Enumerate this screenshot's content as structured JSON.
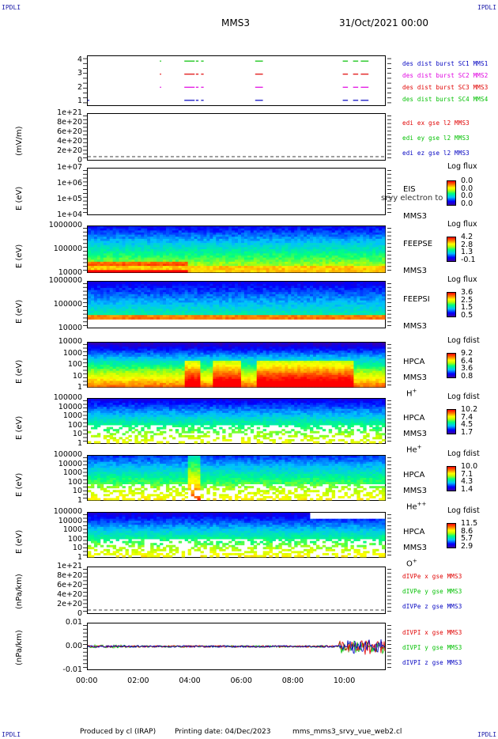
{
  "header": {
    "corner_left_top": "IPDLI",
    "corner_right_top": "IPDLI",
    "corner_left_bottom": "IPDLI",
    "corner_right_bottom": "IPDLI",
    "spacecraft": "MMS3",
    "date": "31/Oct/2021 00:00"
  },
  "footer": {
    "producer": "Produced by cl (IRAP)",
    "printing": "Printing date: 04/Dec/2023",
    "script": "mms_mms3_srvy_vue_web2.cl"
  },
  "x_ticks": [
    "00:00",
    "02:00",
    "04:00",
    "06:00",
    "08:00",
    "10:00"
  ],
  "colors": {
    "c1": "#0000c0",
    "c2": "#e000e0",
    "c3": "#e00000",
    "c4": "#00c000",
    "red": "#e00000",
    "green": "#00c000",
    "blue": "#0000c0"
  },
  "chart_data": [
    {
      "type": "scatter",
      "title": "",
      "ylabel": "",
      "y_ticks": [
        "4",
        "3",
        "2",
        "1"
      ],
      "series": [
        {
          "name": "des dist burst SC1 MMS1",
          "color": "c1",
          "y": 1,
          "intervals": [
            [
              0.0,
              0.06
            ],
            [
              3.75,
              4.15
            ],
            [
              4.2,
              4.3
            ],
            [
              4.4,
              4.5
            ],
            [
              6.5,
              6.8
            ],
            [
              9.9,
              10.1
            ],
            [
              10.3,
              10.5
            ],
            [
              10.6,
              10.9
            ]
          ]
        },
        {
          "name": "des dist burst SC2 MMS2",
          "color": "c2",
          "y": 2,
          "intervals": [
            [
              2.8,
              2.85
            ],
            [
              3.75,
              4.15
            ],
            [
              4.2,
              4.3
            ],
            [
              4.4,
              4.5
            ],
            [
              6.5,
              6.8
            ],
            [
              9.9,
              10.1
            ],
            [
              10.3,
              10.5
            ],
            [
              10.6,
              10.9
            ]
          ]
        },
        {
          "name": "des dist burst SC3 MMS3",
          "color": "c3",
          "y": 3,
          "intervals": [
            [
              2.8,
              2.85
            ],
            [
              3.75,
              4.15
            ],
            [
              4.2,
              4.3
            ],
            [
              4.4,
              4.5
            ],
            [
              6.5,
              6.8
            ],
            [
              9.9,
              10.1
            ],
            [
              10.3,
              10.5
            ],
            [
              10.6,
              10.9
            ]
          ]
        },
        {
          "name": "des dist burst SC4 MMS4",
          "color": "c4",
          "y": 4,
          "intervals": [
            [
              2.8,
              2.85
            ],
            [
              3.75,
              4.15
            ],
            [
              4.2,
              4.3
            ],
            [
              4.4,
              4.5
            ],
            [
              6.5,
              6.8
            ],
            [
              9.9,
              10.1
            ],
            [
              10.3,
              10.5
            ],
            [
              10.6,
              10.9
            ]
          ]
        }
      ]
    },
    {
      "type": "line",
      "ylabel": "(mV/m)",
      "y_ticks": [
        "1e+21",
        "8e+20",
        "6e+20",
        "4e+20",
        "2e+20",
        "0"
      ],
      "series": [
        {
          "name": "edi ex gse l2 MMS3",
          "color": "red"
        },
        {
          "name": "edi ey gse l2 MMS3",
          "color": "green"
        },
        {
          "name": "edi ez gse l2 MMS3",
          "color": "blue"
        }
      ]
    },
    {
      "type": "heatmap",
      "ylabel": "E (eV)",
      "y_ticks": [
        "1e+07",
        "1e+06",
        "1e+05",
        "1e+04"
      ],
      "instrument": "EIS",
      "spacecraft": "MMS3",
      "overlay_text": "srvy electron to",
      "colorbar_title": "Log flux",
      "colorbar_values": [
        "0.0",
        "0.0",
        "0.0",
        "0.0"
      ]
    },
    {
      "type": "heatmap",
      "ylabel": "E (eV)",
      "y_ticks": [
        "1000000",
        "100000",
        "10000"
      ],
      "instrument": "FEEPSE",
      "spacecraft": "MMS3",
      "colorbar_title": "Log flux",
      "colorbar_values": [
        "4.2",
        "2.8",
        "1.3",
        "-0.1"
      ]
    },
    {
      "type": "heatmap",
      "ylabel": "E (eV)",
      "y_ticks": [
        "1000000",
        "100000",
        "10000"
      ],
      "instrument": "FEEPSI",
      "spacecraft": "MMS3",
      "colorbar_title": "Log flux",
      "colorbar_values": [
        "3.6",
        "2.5",
        "1.5",
        "0.5"
      ]
    },
    {
      "type": "heatmap",
      "ylabel": "E (eV)",
      "y_ticks": [
        "10000",
        "1000",
        "100",
        "10",
        "1"
      ],
      "instrument": "HPCA",
      "spacecraft": "MMS3",
      "species": "H",
      "species_sup": "+",
      "colorbar_title": "Log fdist",
      "colorbar_values": [
        "9.2",
        "6.4",
        "3.6",
        "0.8"
      ]
    },
    {
      "type": "heatmap",
      "ylabel": "E (eV)",
      "y_ticks": [
        "100000",
        "10000",
        "1000",
        "100",
        "10",
        "1"
      ],
      "instrument": "HPCA",
      "spacecraft": "MMS3",
      "species": "He",
      "species_sup": "+",
      "colorbar_title": "Log fdist",
      "colorbar_values": [
        "10.2",
        "7.4",
        "4.5",
        "1.7"
      ]
    },
    {
      "type": "heatmap",
      "ylabel": "E (eV)",
      "y_ticks": [
        "100000",
        "10000",
        "1000",
        "100",
        "10",
        "1"
      ],
      "instrument": "HPCA",
      "spacecraft": "MMS3",
      "species": "He",
      "species_sup": "++",
      "colorbar_title": "Log fdist",
      "colorbar_values": [
        "10.0",
        "7.1",
        "4.3",
        "1.4"
      ]
    },
    {
      "type": "heatmap",
      "ylabel": "E (eV)",
      "y_ticks": [
        "100000",
        "10000",
        "1000",
        "100",
        "10",
        "1"
      ],
      "instrument": "HPCA",
      "spacecraft": "MMS3",
      "species": "O",
      "species_sup": "+",
      "colorbar_title": "Log fdist",
      "colorbar_values": [
        "11.5",
        "8.6",
        "5.7",
        "2.9"
      ]
    },
    {
      "type": "line",
      "ylabel": "(nPa/km)",
      "y_ticks": [
        "1e+21",
        "8e+20",
        "6e+20",
        "4e+20",
        "2e+20",
        "0"
      ],
      "series": [
        {
          "name": "dIVPe x gse MMS3",
          "color": "red"
        },
        {
          "name": "dIVPe y gse MMS3",
          "color": "green"
        },
        {
          "name": "dIVPe z gse MMS3",
          "color": "blue"
        }
      ]
    },
    {
      "type": "line",
      "ylabel": "(nPa/km)",
      "y_ticks": [
        "0.01",
        "0.00",
        "-0.01"
      ],
      "ylim": [
        -0.015,
        0.015
      ],
      "series": [
        {
          "name": "dIVPI x gse MMS3",
          "color": "red"
        },
        {
          "name": "dIVPI y gse MMS3",
          "color": "green"
        },
        {
          "name": "dIVPI z gse MMS3",
          "color": "blue"
        }
      ]
    }
  ]
}
